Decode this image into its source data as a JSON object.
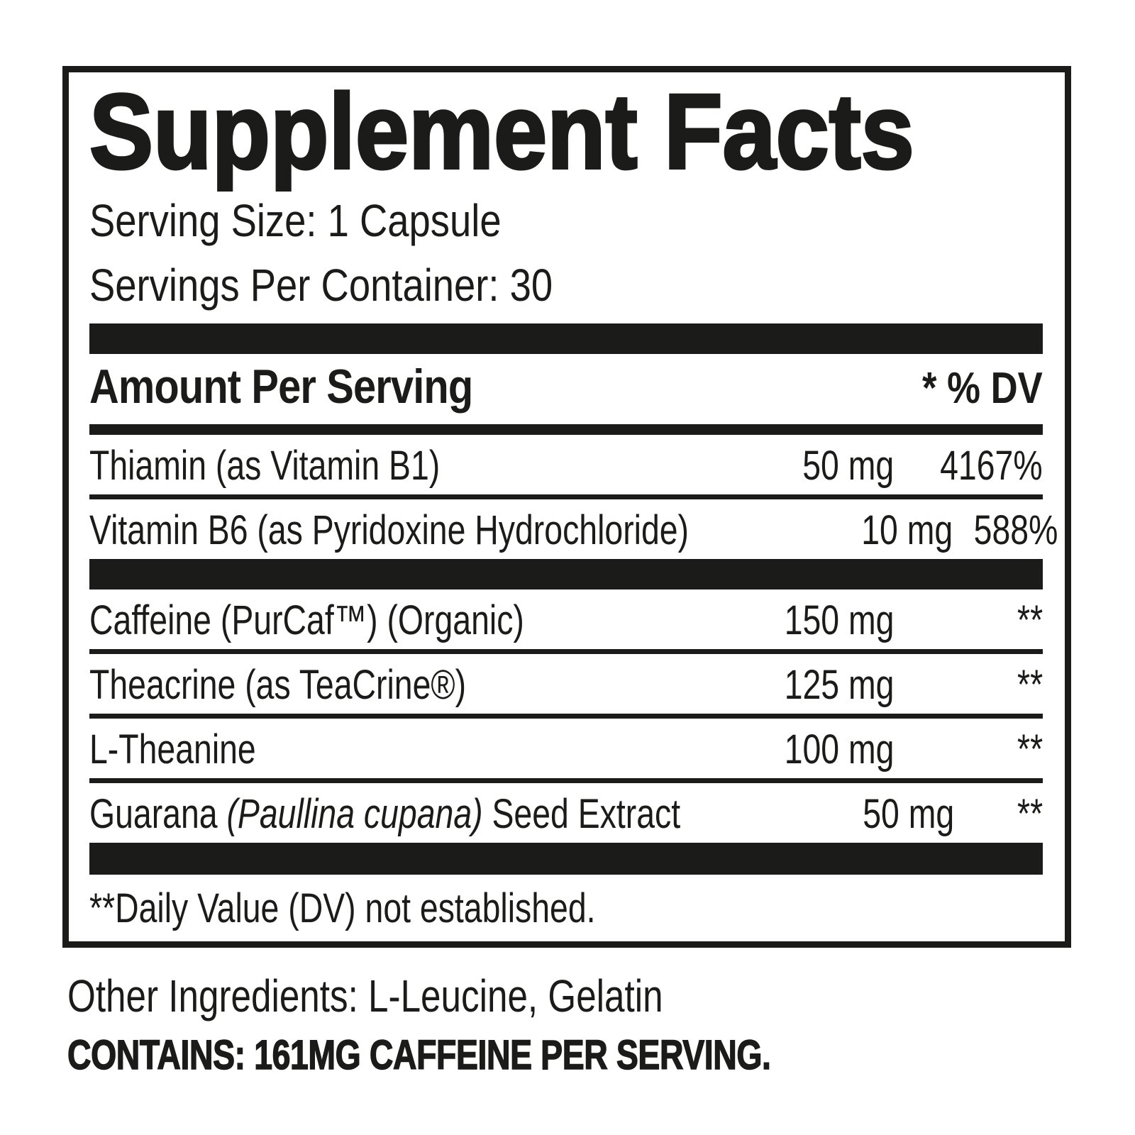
{
  "page": {
    "background": "#ffffff",
    "ink": "#1b1b19"
  },
  "label": {
    "title": "Supplement Facts",
    "serving": {
      "size": "Serving Size: 1 Capsule",
      "per_container": "Servings Per Container: 30"
    },
    "columns": {
      "amount_header": "Amount Per Serving",
      "dv_header": "* % DV"
    },
    "rows": [
      {
        "name_prefix": "Thiamin (as Vitamin B1)",
        "name_italic": "",
        "name_suffix": "",
        "amount": "50 mg",
        "dv": "4167%"
      },
      {
        "name_prefix": "Vitamin B6 (as Pyridoxine Hydrochloride)",
        "name_italic": "",
        "name_suffix": "",
        "amount": "10 mg",
        "dv": "588%"
      },
      {
        "name_prefix": "Caffeine (PurCaf™) (Organic)",
        "name_italic": "",
        "name_suffix": "",
        "amount": "150 mg",
        "dv": "**"
      },
      {
        "name_prefix": "Theacrine (as TeaCrine®)",
        "name_italic": "",
        "name_suffix": "",
        "amount": "125 mg",
        "dv": "**"
      },
      {
        "name_prefix": "L-Theanine",
        "name_italic": "",
        "name_suffix": "",
        "amount": "100 mg",
        "dv": "**"
      },
      {
        "name_prefix": "Guarana ",
        "name_italic": "(Paullina cupana)",
        "name_suffix": " Seed Extract",
        "amount": "50 mg",
        "dv": "**"
      }
    ],
    "footnote": "**Daily Value (DV) not established.",
    "other_ingredients": "Other Ingredients: L-Leucine, Gelatin",
    "contains_statement": "CONTAINS: 161MG CAFFEINE PER SERVING."
  }
}
